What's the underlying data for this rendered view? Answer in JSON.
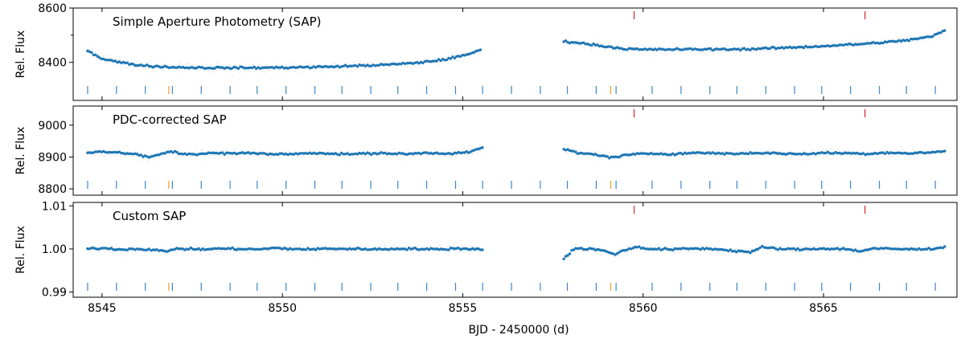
{
  "figure": {
    "xlabel": "BJD - 2450000 (d)",
    "x_ticks": [
      8545,
      8550,
      8555,
      8560,
      8565
    ],
    "x_tick_labels": [
      "8545",
      "8550",
      "8555",
      "8560",
      "8565"
    ],
    "colors": {
      "binned": "#1f77b4",
      "raw": "#c4c4c4",
      "marker_blue": "#3a86c8",
      "marker_orange": "#f29a2e",
      "marker_red": "#d62728",
      "frame": "#000000"
    }
  },
  "chart_data": [
    {
      "type": "scatter",
      "title": "Simple Aperture Photometry (SAP)",
      "ylabel": "Rel. Flux",
      "xlim": [
        8544.2,
        8568.7
      ],
      "ylim": [
        8260,
        8600
      ],
      "y_ticks": [
        8400,
        8600
      ],
      "y_tick_labels": [
        "8400",
        "8600"
      ],
      "y_minor_ticks": [
        8500
      ],
      "segments": [
        {
          "x": [
            8544.6,
            8544.8,
            8545.0,
            8545.5,
            8546.0,
            8546.5,
            8547.0,
            8548.0,
            8549.0,
            8550.0,
            8551.0,
            8552.0,
            8553.0,
            8553.5,
            8554.0,
            8554.5,
            8555.0,
            8555.5
          ],
          "y": [
            8443,
            8428,
            8414,
            8400,
            8390,
            8385,
            8382,
            8380,
            8380,
            8381,
            8383,
            8387,
            8392,
            8396,
            8402,
            8411,
            8424,
            8445
          ]
        },
        {
          "x": [
            8557.8,
            8558.0,
            8558.5,
            8559.0,
            8559.5,
            8560.0,
            8561.0,
            8562.0,
            8563.0,
            8563.5,
            8564.0,
            8565.0,
            8566.0,
            8567.0,
            8567.5,
            8568.0,
            8568.4
          ],
          "y": [
            8478,
            8475,
            8467,
            8458,
            8450,
            8447,
            8448,
            8448,
            8449,
            8452,
            8454,
            8460,
            8467,
            8477,
            8485,
            8495,
            8520
          ]
        }
      ],
      "red_markers": [
        8559.75,
        8566.15
      ],
      "blue_markers": [
        8544.6,
        8545.4,
        8546.2,
        8546.95,
        8547.75,
        8548.55,
        8549.3,
        8550.1,
        8550.9,
        8551.65,
        8552.45,
        8553.2,
        8554.0,
        8554.8,
        8555.55,
        8556.35,
        8557.15,
        8557.9,
        8558.7,
        8559.25,
        8560.25,
        8561.05,
        8561.85,
        8562.6,
        8563.4,
        8564.2,
        8564.95,
        8565.75,
        8566.55,
        8567.3,
        8568.1
      ],
      "orange_markers": [
        8546.85,
        8559.1
      ]
    },
    {
      "type": "scatter",
      "title": "PDC-corrected SAP",
      "ylabel": "Rel. Flux",
      "xlim": [
        8544.2,
        8568.7
      ],
      "ylim": [
        8780,
        9060
      ],
      "y_ticks": [
        8800,
        8900,
        9000
      ],
      "y_tick_labels": [
        "8800",
        "8900",
        "9000"
      ],
      "y_minor_ticks": [],
      "segments": [
        {
          "x": [
            8544.6,
            8545.0,
            8545.5,
            8546.0,
            8546.3,
            8546.6,
            8546.9,
            8547.2,
            8547.6,
            8548.0,
            8548.6,
            8549.2,
            8549.8,
            8550.4,
            8551.0,
            8551.6,
            8552.2,
            8552.8,
            8553.4,
            8554.0,
            8554.6,
            8555.2,
            8555.55
          ],
          "y": [
            8915,
            8917,
            8913,
            8908,
            8898,
            8908,
            8918,
            8910,
            8909,
            8912,
            8911,
            8913,
            8908,
            8910,
            8913,
            8909,
            8910,
            8912,
            8909,
            8913,
            8911,
            8915,
            8930
          ]
        },
        {
          "x": [
            8557.8,
            8558.2,
            8558.7,
            8559.1,
            8559.6,
            8560.2,
            8560.8,
            8561.4,
            8562.0,
            8562.6,
            8563.2,
            8563.8,
            8564.4,
            8565.0,
            8565.6,
            8566.2,
            8566.8,
            8567.4,
            8568.0,
            8568.4
          ],
          "y": [
            8925,
            8912,
            8908,
            8898,
            8907,
            8911,
            8909,
            8913,
            8912,
            8910,
            8913,
            8911,
            8909,
            8913,
            8912,
            8910,
            8914,
            8911,
            8915,
            8918
          ]
        }
      ],
      "red_markers": [
        8559.75,
        8566.15
      ],
      "blue_markers": [
        8544.6,
        8545.4,
        8546.2,
        8546.95,
        8547.75,
        8548.55,
        8549.3,
        8550.1,
        8550.9,
        8551.65,
        8552.45,
        8553.2,
        8554.0,
        8554.8,
        8555.55,
        8556.35,
        8557.15,
        8557.9,
        8558.7,
        8559.25,
        8560.25,
        8561.05,
        8561.85,
        8562.6,
        8563.4,
        8564.2,
        8564.95,
        8565.75,
        8566.55,
        8567.3,
        8568.1
      ],
      "orange_markers": [
        8546.85,
        8559.1
      ]
    },
    {
      "type": "scatter",
      "title": "Custom SAP",
      "ylabel": "Rel. Flux",
      "xlim": [
        8544.2,
        8568.7
      ],
      "ylim": [
        0.9888,
        1.0108
      ],
      "y_ticks": [
        0.99,
        1.0,
        1.01
      ],
      "y_tick_labels": [
        "0.99",
        "1.00",
        "1.01"
      ],
      "y_minor_ticks": [],
      "segments": [
        {
          "x": [
            8544.6,
            8545.0,
            8545.5,
            8546.0,
            8546.5,
            8546.8,
            8547.0,
            8547.3,
            8547.8,
            8548.3,
            8548.8,
            8549.3,
            8549.8,
            8550.3,
            8550.8,
            8551.3,
            8551.8,
            8552.3,
            8552.8,
            8553.3,
            8553.8,
            8554.3,
            8554.8,
            8555.3,
            8555.55
          ],
          "y": [
            1.0,
            1.0002,
            0.9999,
            1.0,
            0.9998,
            0.9993,
            1.0001,
            1.0,
            0.9999,
            1.0001,
            1.0,
            0.9999,
            1.0002,
            1.0,
            0.9999,
            1.0001,
            1.0,
            1.0,
            0.9999,
            1.0001,
            1.0,
            0.9999,
            1.0001,
            1.0,
            0.9999
          ]
        },
        {
          "x": [
            8557.8,
            8558.1,
            8558.6,
            8559.0,
            8559.2,
            8559.5,
            8559.8,
            8560.2,
            8560.8,
            8561.4,
            8562.0,
            8562.6,
            8563.0,
            8563.3,
            8563.8,
            8564.4,
            8565.0,
            8565.6,
            8566.0,
            8566.4,
            8567.0,
            8567.6,
            8568.0,
            8568.4
          ],
          "y": [
            0.9978,
            1.0001,
            1.0,
            0.9994,
            0.9988,
            0.9997,
            1.0005,
            1.0,
            0.9999,
            1.0001,
            1.0,
            0.9995,
            0.9993,
            1.0004,
            1.0,
            0.9999,
            1.0001,
            1.0,
            0.9995,
            1.0001,
            1.0,
            0.9999,
            1.0001,
            1.0004
          ]
        }
      ],
      "red_markers": [
        8559.75,
        8566.15
      ],
      "blue_markers": [
        8544.6,
        8545.4,
        8546.2,
        8546.95,
        8547.75,
        8548.55,
        8549.3,
        8550.1,
        8550.9,
        8551.65,
        8552.45,
        8553.2,
        8554.0,
        8554.8,
        8555.55,
        8556.35,
        8557.15,
        8557.9,
        8558.7,
        8559.25,
        8560.25,
        8561.05,
        8561.85,
        8562.6,
        8563.4,
        8564.2,
        8564.95,
        8565.75,
        8566.55,
        8567.3,
        8568.1
      ],
      "orange_markers": [
        8546.85,
        8559.1
      ]
    }
  ]
}
